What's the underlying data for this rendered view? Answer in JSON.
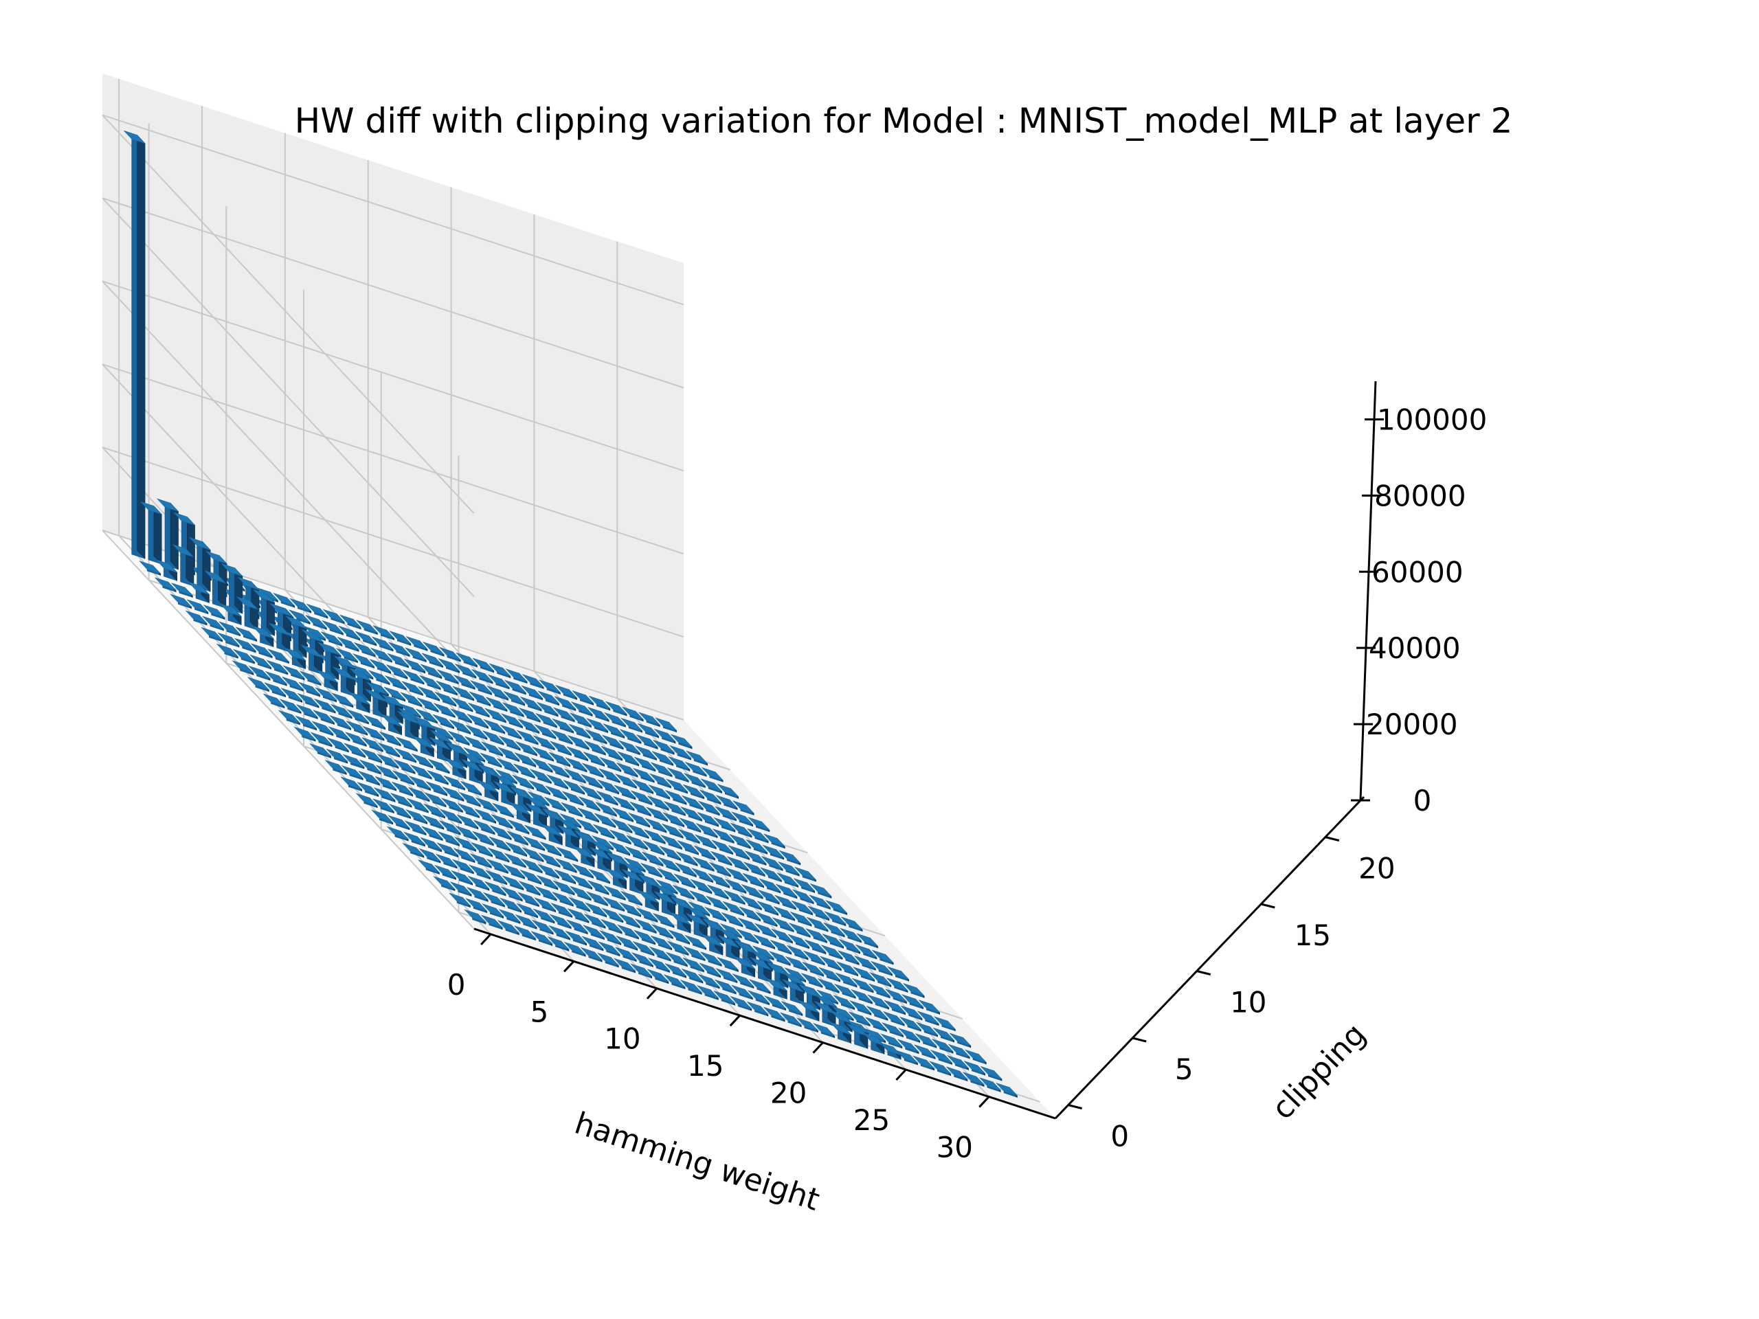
{
  "chart_data": {
    "type": "bar3d",
    "title": "HW diff with clipping variation for Model : MNIST_model_MLP at layer 2",
    "xlabel": "hamming weight",
    "ylabel": "clipping",
    "zlabel": "",
    "xlim": [
      -1,
      34
    ],
    "ylim": [
      -1,
      23
    ],
    "zlim": [
      0,
      110000
    ],
    "xticks": [
      0,
      5,
      10,
      15,
      20,
      25,
      30
    ],
    "yticks": [
      0,
      5,
      10,
      15,
      20
    ],
    "zticks": [
      0,
      20000,
      40000,
      60000,
      80000,
      100000
    ],
    "grid": true,
    "bar_color": "#1f77b4",
    "clipping_values": [
      0,
      1,
      2,
      3,
      4,
      5,
      6,
      7,
      8,
      9,
      10,
      11,
      12,
      13,
      14,
      15,
      16,
      17,
      18,
      19,
      20,
      21,
      22
    ],
    "hamming_weights": [
      0,
      1,
      2,
      3,
      4,
      5,
      6,
      7,
      8,
      9,
      10,
      11,
      12,
      13,
      14,
      15,
      16,
      17,
      18,
      19,
      20,
      21,
      22,
      23,
      24,
      25,
      26,
      27,
      28,
      29,
      30,
      31,
      32
    ],
    "values": [
      [
        0,
        0,
        0,
        0,
        0,
        0,
        0,
        0,
        0,
        0,
        0,
        0,
        0,
        0,
        0,
        0,
        0,
        0,
        0,
        0,
        0,
        0,
        2000,
        3000,
        2000,
        1000,
        0,
        0,
        0,
        0,
        0,
        0,
        0
      ],
      [
        0,
        0,
        0,
        0,
        0,
        0,
        0,
        0,
        0,
        0,
        0,
        0,
        0,
        0,
        0,
        0,
        0,
        0,
        0,
        0,
        0,
        2000,
        3000,
        2000,
        1000,
        0,
        0,
        0,
        0,
        0,
        0,
        0,
        0
      ],
      [
        0,
        0,
        0,
        0,
        0,
        0,
        0,
        0,
        0,
        0,
        0,
        0,
        0,
        0,
        0,
        0,
        0,
        0,
        0,
        0,
        2000,
        3000,
        3000,
        2000,
        0,
        0,
        0,
        0,
        0,
        0,
        0,
        0,
        0
      ],
      [
        0,
        0,
        0,
        0,
        0,
        0,
        0,
        0,
        0,
        0,
        0,
        0,
        0,
        0,
        0,
        0,
        0,
        0,
        0,
        2000,
        3000,
        3000,
        2000,
        0,
        0,
        0,
        0,
        0,
        0,
        0,
        0,
        0,
        0
      ],
      [
        0,
        0,
        0,
        0,
        0,
        0,
        0,
        0,
        0,
        0,
        0,
        0,
        0,
        0,
        0,
        0,
        0,
        0,
        2000,
        3000,
        3000,
        2000,
        0,
        0,
        0,
        0,
        0,
        0,
        0,
        0,
        0,
        0,
        0
      ],
      [
        0,
        0,
        0,
        0,
        0,
        0,
        0,
        0,
        0,
        0,
        0,
        0,
        0,
        0,
        0,
        0,
        0,
        2000,
        3000,
        3000,
        2000,
        0,
        0,
        0,
        0,
        0,
        0,
        0,
        0,
        0,
        0,
        0,
        0
      ],
      [
        0,
        0,
        0,
        0,
        0,
        0,
        0,
        0,
        0,
        0,
        0,
        0,
        0,
        0,
        0,
        0,
        2000,
        3000,
        3000,
        2000,
        0,
        0,
        0,
        0,
        0,
        0,
        0,
        0,
        0,
        0,
        0,
        0,
        0
      ],
      [
        0,
        0,
        0,
        0,
        0,
        0,
        0,
        0,
        0,
        0,
        0,
        0,
        0,
        0,
        0,
        2000,
        3000,
        3000,
        2000,
        0,
        0,
        0,
        0,
        0,
        0,
        0,
        0,
        0,
        0,
        0,
        0,
        0,
        0
      ],
      [
        0,
        0,
        0,
        0,
        0,
        0,
        0,
        0,
        0,
        0,
        0,
        0,
        0,
        0,
        2000,
        3000,
        3000,
        2000,
        0,
        0,
        0,
        0,
        0,
        0,
        0,
        0,
        0,
        0,
        0,
        0,
        0,
        0,
        0
      ],
      [
        0,
        0,
        0,
        0,
        0,
        0,
        0,
        0,
        0,
        0,
        0,
        0,
        0,
        2000,
        3000,
        3000,
        2000,
        0,
        0,
        0,
        0,
        0,
        0,
        0,
        0,
        0,
        0,
        0,
        0,
        0,
        0,
        0,
        0
      ],
      [
        0,
        0,
        0,
        0,
        0,
        0,
        0,
        0,
        0,
        0,
        0,
        0,
        2000,
        3000,
        3000,
        2000,
        0,
        0,
        0,
        0,
        0,
        0,
        0,
        0,
        0,
        0,
        0,
        0,
        0,
        0,
        0,
        0,
        0
      ],
      [
        0,
        0,
        0,
        0,
        0,
        0,
        0,
        0,
        0,
        0,
        0,
        2000,
        3000,
        3000,
        2000,
        0,
        0,
        0,
        0,
        0,
        0,
        0,
        0,
        0,
        0,
        0,
        0,
        0,
        0,
        0,
        0,
        0,
        0
      ],
      [
        0,
        0,
        0,
        0,
        0,
        0,
        0,
        0,
        0,
        0,
        2000,
        3000,
        3000,
        2000,
        0,
        0,
        0,
        0,
        0,
        0,
        0,
        0,
        0,
        0,
        0,
        0,
        0,
        0,
        0,
        0,
        0,
        0,
        0
      ],
      [
        0,
        0,
        0,
        0,
        0,
        0,
        0,
        0,
        0,
        2000,
        3000,
        3000,
        2000,
        0,
        0,
        0,
        0,
        0,
        0,
        0,
        0,
        0,
        0,
        0,
        0,
        0,
        0,
        0,
        0,
        0,
        0,
        0,
        0
      ],
      [
        0,
        0,
        0,
        0,
        0,
        0,
        0,
        0,
        2000,
        4000,
        4000,
        2000,
        0,
        0,
        0,
        0,
        0,
        0,
        0,
        0,
        0,
        0,
        0,
        0,
        0,
        0,
        0,
        0,
        0,
        0,
        0,
        0,
        0
      ],
      [
        0,
        0,
        0,
        0,
        0,
        0,
        0,
        2000,
        4000,
        4000,
        2000,
        0,
        0,
        0,
        0,
        0,
        0,
        0,
        0,
        0,
        0,
        0,
        0,
        0,
        0,
        0,
        0,
        0,
        0,
        0,
        0,
        0,
        0
      ],
      [
        0,
        0,
        0,
        0,
        0,
        0,
        2000,
        4000,
        5000,
        3000,
        0,
        0,
        0,
        0,
        0,
        0,
        0,
        0,
        0,
        0,
        0,
        0,
        0,
        0,
        0,
        0,
        0,
        0,
        0,
        0,
        0,
        0,
        0
      ],
      [
        0,
        0,
        0,
        0,
        0,
        2000,
        4000,
        6000,
        4000,
        0,
        0,
        0,
        0,
        0,
        0,
        0,
        0,
        0,
        0,
        0,
        0,
        0,
        0,
        0,
        0,
        0,
        0,
        0,
        0,
        0,
        0,
        0,
        0
      ],
      [
        0,
        0,
        0,
        0,
        2000,
        4000,
        7000,
        5000,
        0,
        0,
        0,
        0,
        0,
        0,
        0,
        0,
        0,
        0,
        0,
        0,
        0,
        0,
        0,
        0,
        0,
        0,
        0,
        0,
        0,
        0,
        0,
        0,
        0
      ],
      [
        0,
        0,
        0,
        2000,
        5000,
        8000,
        6000,
        0,
        0,
        0,
        0,
        0,
        0,
        0,
        0,
        0,
        0,
        0,
        0,
        0,
        0,
        0,
        0,
        0,
        0,
        0,
        0,
        0,
        0,
        0,
        0,
        0,
        0
      ],
      [
        0,
        0,
        2000,
        6000,
        9000,
        7000,
        0,
        0,
        0,
        0,
        0,
        0,
        0,
        0,
        0,
        0,
        0,
        0,
        0,
        0,
        0,
        0,
        0,
        0,
        0,
        0,
        0,
        0,
        0,
        0,
        0,
        0,
        0
      ],
      [
        0,
        2000,
        7000,
        10000,
        8000,
        0,
        0,
        0,
        0,
        0,
        0,
        0,
        0,
        0,
        0,
        0,
        0,
        0,
        0,
        0,
        0,
        0,
        0,
        0,
        0,
        0,
        0,
        0,
        0,
        0,
        0,
        0,
        0
      ],
      [
        100000,
        12000,
        14000,
        12000,
        0,
        0,
        0,
        0,
        0,
        0,
        0,
        0,
        0,
        0,
        0,
        0,
        0,
        0,
        0,
        0,
        0,
        0,
        0,
        0,
        0,
        0,
        0,
        0,
        0,
        0,
        0,
        0,
        0
      ]
    ]
  }
}
